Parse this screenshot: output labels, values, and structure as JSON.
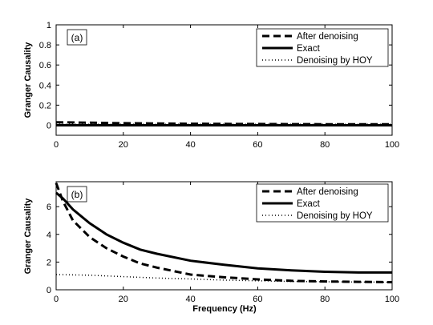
{
  "chart_data": [
    {
      "type": "line",
      "panel_label": "(a)",
      "xlabel": "",
      "ylabel": "Granger Causality",
      "xlim": [
        0,
        100
      ],
      "ylim": [
        -0.1,
        1
      ],
      "xticks": [
        0,
        20,
        40,
        60,
        80,
        100
      ],
      "yticks": [
        0,
        0.2,
        0.4,
        0.6,
        0.8,
        1
      ],
      "ytick_labels": [
        "0",
        "0.2",
        "0.4",
        "0.6",
        "0.8",
        "1"
      ],
      "grid": false,
      "legend_position": "top-right",
      "series": [
        {
          "name": "After denoising",
          "style": "dashed",
          "x": [
            0,
            10,
            20,
            30,
            40,
            50,
            60,
            70,
            80,
            90,
            100
          ],
          "y": [
            0.03,
            0.025,
            0.02,
            0.017,
            0.015,
            0.013,
            0.012,
            0.011,
            0.01,
            0.01,
            0.01
          ]
        },
        {
          "name": "Exact",
          "style": "solid",
          "x": [
            0,
            10,
            20,
            30,
            40,
            50,
            60,
            70,
            80,
            90,
            100
          ],
          "y": [
            0.0,
            0.0,
            0.0,
            0.0,
            0.0,
            0.0,
            0.0,
            0.0,
            0.0,
            0.0,
            0.0
          ]
        },
        {
          "name": "Denoising by HOY",
          "style": "dotted",
          "x": [
            0,
            10,
            20,
            30,
            40,
            50,
            60,
            70,
            80,
            90,
            100
          ],
          "y": [
            0.01,
            0.01,
            0.01,
            0.01,
            0.01,
            0.01,
            0.01,
            0.01,
            0.01,
            0.01,
            0.01
          ]
        }
      ]
    },
    {
      "type": "line",
      "panel_label": "(b)",
      "xlabel": "Frequency (Hz)",
      "ylabel": "Granger Causality",
      "xlim": [
        0,
        100
      ],
      "ylim": [
        0,
        7.8
      ],
      "xticks": [
        0,
        20,
        40,
        60,
        80,
        100
      ],
      "yticks": [
        0,
        2,
        4,
        6
      ],
      "ytick_labels": [
        "0",
        "2",
        "4",
        "6"
      ],
      "grid": false,
      "legend_position": "top-right",
      "series": [
        {
          "name": "After denoising",
          "style": "dashed",
          "x": [
            0,
            2,
            5,
            10,
            15,
            20,
            25,
            30,
            40,
            50,
            60,
            70,
            80,
            90,
            100
          ],
          "y": [
            7.7,
            6.4,
            5.0,
            3.8,
            3.0,
            2.4,
            1.9,
            1.6,
            1.1,
            0.9,
            0.75,
            0.65,
            0.6,
            0.57,
            0.55
          ]
        },
        {
          "name": "Exact",
          "style": "solid",
          "x": [
            0,
            2,
            5,
            10,
            15,
            20,
            25,
            30,
            40,
            50,
            60,
            70,
            80,
            90,
            100
          ],
          "y": [
            7.0,
            6.6,
            5.8,
            4.8,
            4.0,
            3.4,
            2.9,
            2.6,
            2.1,
            1.8,
            1.55,
            1.4,
            1.3,
            1.25,
            1.25
          ]
        },
        {
          "name": "Denoising by HOY",
          "style": "dotted",
          "x": [
            0,
            10,
            20,
            30,
            40,
            50,
            60,
            70,
            80,
            90,
            100
          ],
          "y": [
            1.1,
            1.05,
            0.95,
            0.85,
            0.78,
            0.7,
            0.65,
            0.6,
            0.58,
            0.56,
            0.55
          ]
        }
      ]
    }
  ]
}
